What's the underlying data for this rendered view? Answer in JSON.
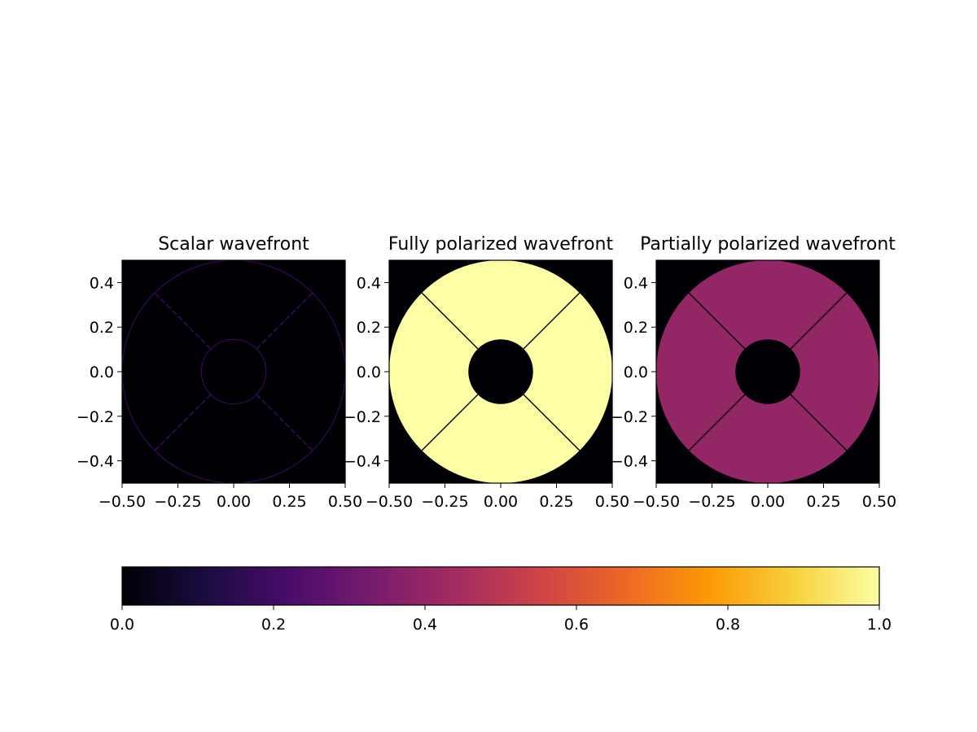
{
  "chart_data": [
    {
      "type": "heatmap",
      "title": "Scalar wavefront",
      "xlim": [
        -0.5,
        0.5
      ],
      "ylim": [
        -0.5,
        0.5
      ],
      "xticks": [
        "−0.50",
        "−0.25",
        "0.00",
        "0.25",
        "0.50"
      ],
      "yticks": [
        "0.4",
        "0.2",
        "0.0",
        "−0.2",
        "−0.4"
      ],
      "aperture": {
        "outer_radius": 0.5,
        "inner_radius": 0.145,
        "spider_angles_deg": [
          45,
          135,
          225,
          315
        ]
      },
      "region_value": 0.0,
      "edge_value": 0.2,
      "background_value": 0.0
    },
    {
      "type": "heatmap",
      "title": "Fully polarized wavefront",
      "xlim": [
        -0.5,
        0.5
      ],
      "ylim": [
        -0.5,
        0.5
      ],
      "xticks": [
        "−0.50",
        "−0.25",
        "0.00",
        "0.25",
        "0.50"
      ],
      "yticks": [
        "0.4",
        "0.2",
        "0.0",
        "−0.2",
        "−0.4"
      ],
      "aperture": {
        "outer_radius": 0.5,
        "inner_radius": 0.145,
        "spider_angles_deg": [
          45,
          135,
          225,
          315
        ]
      },
      "region_value": 1.0,
      "edge_value": 0.0,
      "background_value": 0.0
    },
    {
      "type": "heatmap",
      "title": "Partially polarized wavefront",
      "xlim": [
        -0.5,
        0.5
      ],
      "ylim": [
        -0.5,
        0.5
      ],
      "xticks": [
        "−0.50",
        "−0.25",
        "0.00",
        "0.25",
        "0.50"
      ],
      "yticks": [
        "0.4",
        "0.2",
        "0.0",
        "−0.2",
        "−0.4"
      ],
      "aperture": {
        "outer_radius": 0.5,
        "inner_radius": 0.145,
        "spider_angles_deg": [
          45,
          135,
          225,
          315
        ]
      },
      "region_value": 0.4,
      "edge_value": 0.0,
      "background_value": 0.0
    }
  ],
  "colorbar": {
    "colormap": "inferno",
    "orientation": "horizontal",
    "range": [
      0.0,
      1.0
    ],
    "ticks": [
      "0.0",
      "0.2",
      "0.4",
      "0.6",
      "0.8",
      "1.0"
    ],
    "stops": [
      "#000004",
      "#1b0c41",
      "#4a0c6b",
      "#781c6d",
      "#a52c60",
      "#cf4446",
      "#ed6925",
      "#fb9b06",
      "#f7d13d",
      "#fcffa4"
    ]
  }
}
